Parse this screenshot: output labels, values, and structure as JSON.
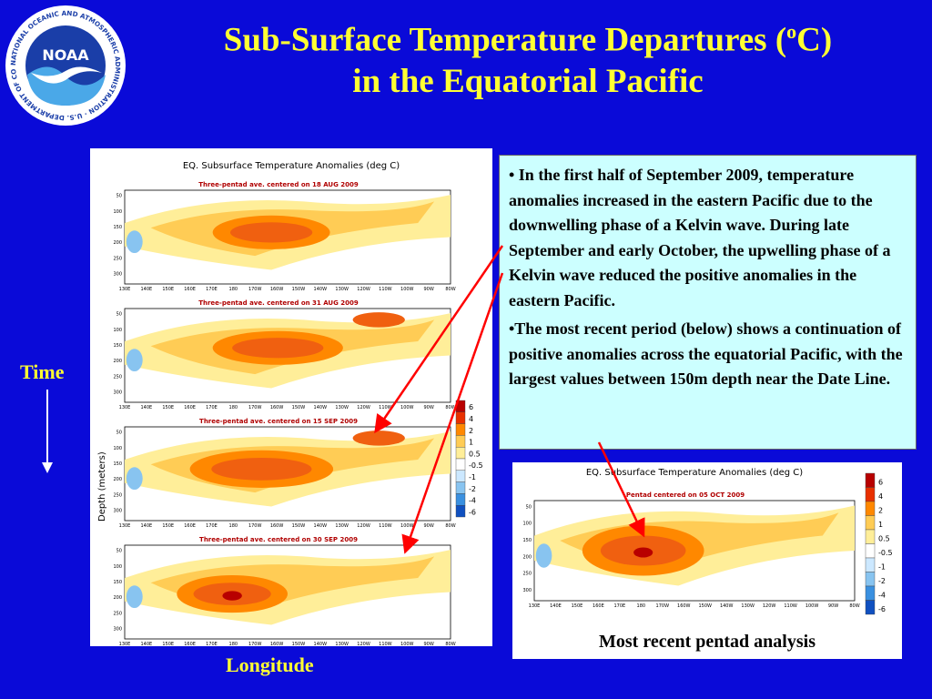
{
  "title": {
    "line1_prefix": "Sub-Surface Temperature Departures (",
    "line1_sup": "o",
    "line1_suffix": "C)",
    "line2": "in  the Equatorial Pacific"
  },
  "logo": {
    "center_text": "NOAA",
    "ring_text": "NATIONAL OCEANIC AND ATMOSPHERIC ADMINISTRATION · U.S. DEPARTMENT OF COMMERCE"
  },
  "left_figure": {
    "heading": "EQ. Subsurface Temperature Anomalies (deg C)",
    "ylabel": "Depth (meters)",
    "panels": [
      {
        "caption": "Three-pentad ave. centered on 18 AUG 2009"
      },
      {
        "caption": "Three-pentad ave. centered on 31 AUG 2009"
      },
      {
        "caption": "Three-pentad ave. centered on 15 SEP 2009"
      },
      {
        "caption": "Three-pentad ave. centered on 30 SEP 2009"
      }
    ],
    "depth_ticks": [
      "50",
      "100",
      "150",
      "200",
      "250",
      "300"
    ],
    "lon_ticks": [
      "130E",
      "140E",
      "150E",
      "160E",
      "170E",
      "180",
      "170W",
      "160W",
      "150W",
      "140W",
      "130W",
      "120W",
      "110W",
      "100W",
      "90W",
      "80W"
    ],
    "colorbar": [
      "6",
      "4",
      "2",
      "1",
      "0.5",
      "-0.5",
      "-1",
      "-2",
      "-4",
      "-6"
    ]
  },
  "right_figure": {
    "heading": "EQ. Subsurface Temperature Anomalies (deg C)",
    "caption": "Pentad centered on 05 OCT 2009",
    "depth_ticks": [
      "50",
      "100",
      "150",
      "200",
      "250",
      "300"
    ],
    "lon_ticks": [
      "130E",
      "140E",
      "150E",
      "160E",
      "170E",
      "180",
      "170W",
      "160W",
      "150W",
      "140W",
      "130W",
      "120W",
      "110W",
      "100W",
      "90W",
      "80W"
    ],
    "colorbar": [
      "6",
      "4",
      "2",
      "1",
      "0.5",
      "-0.5",
      "-1",
      "-2",
      "-4",
      "-6"
    ]
  },
  "bullets": [
    "• In the first half of September 2009, temperature anomalies increased in the eastern Pacific due to the downwelling phase of a Kelvin wave.  During late September and early October, the upwelling phase of a Kelvin wave reduced the positive anomalies in the eastern Pacific.",
    "•The most recent period (below) shows  a continuation of positive anomalies across the equatorial Pacific, with the largest values between 150m depth near the Date Line."
  ],
  "labels": {
    "time": "Time",
    "longitude": "Longitude",
    "recent": "Most recent pentad analysis"
  },
  "colors": {
    "background": "#0a0ad8",
    "title": "#ffff33",
    "textbox": "#ccffff",
    "arrow": "#ff0000"
  }
}
